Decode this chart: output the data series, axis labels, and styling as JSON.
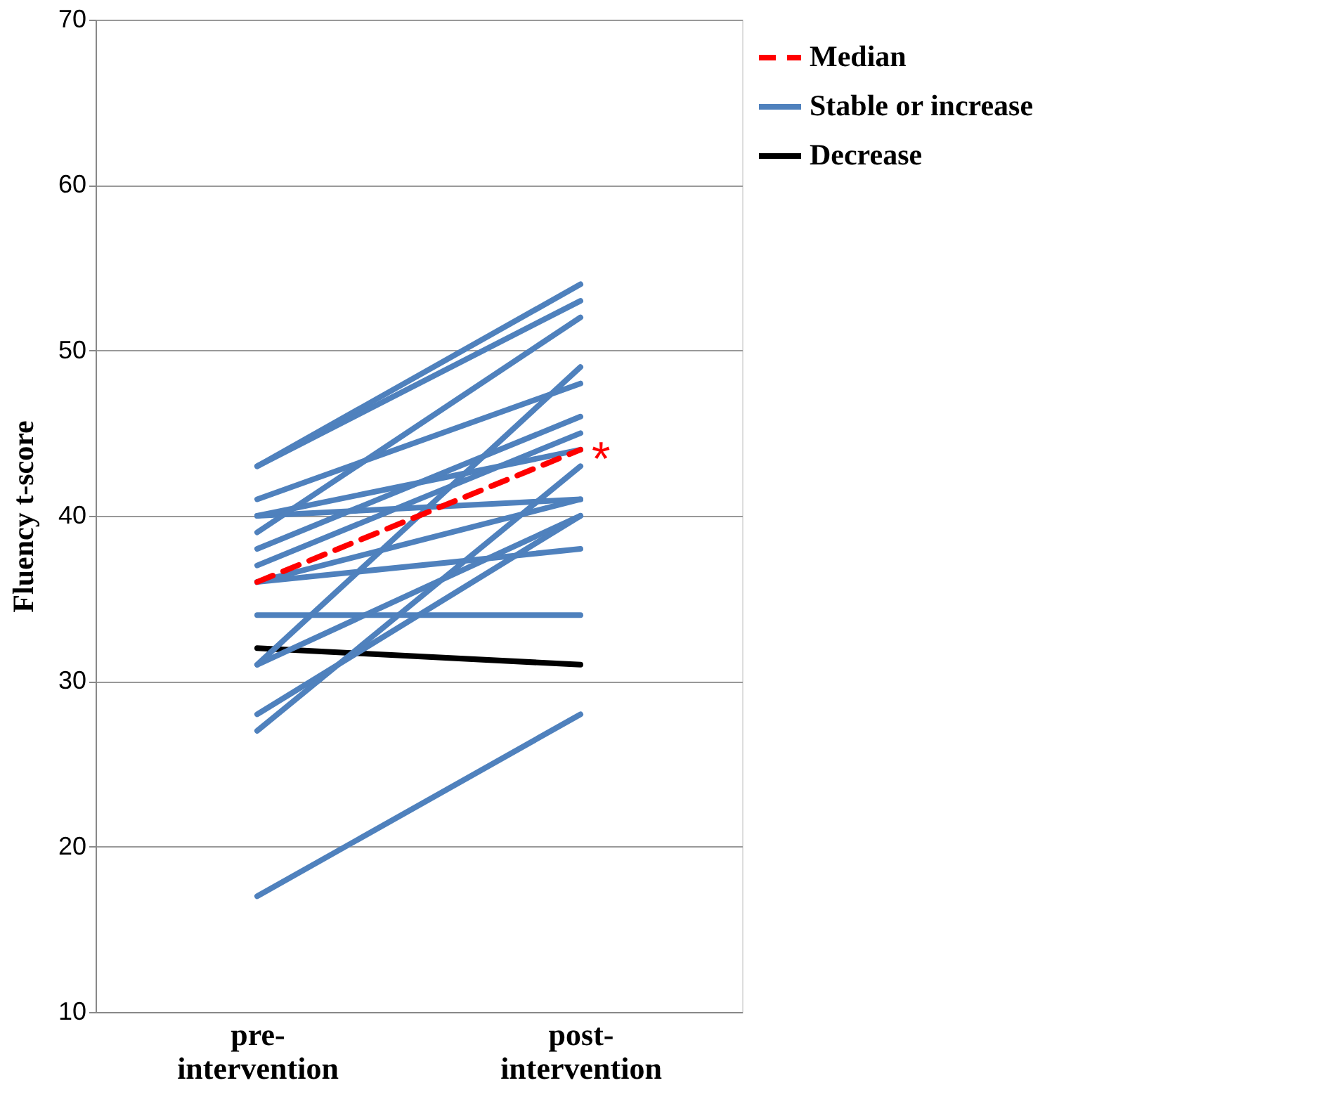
{
  "chart_data": {
    "type": "line",
    "ylabel": "Fluency t-score",
    "categories": [
      "pre-intervention",
      "post-intervention"
    ],
    "ylim": [
      10,
      70
    ],
    "yticks": [
      10,
      20,
      30,
      40,
      50,
      60,
      70
    ],
    "grid": "y",
    "legend": "top right",
    "marker": "none",
    "annotations": [
      {
        "text": "*",
        "x": "post-intervention",
        "y": 44
      }
    ],
    "series": [
      {
        "name": "Median",
        "color": "#ff0000",
        "line_style": "dashed",
        "values": [
          36,
          44
        ]
      },
      {
        "name": "Stable or increase",
        "color": "#4f81bd",
        "values": [
          43,
          54
        ]
      },
      {
        "color": "#4f81bd",
        "values": [
          43,
          53
        ]
      },
      {
        "color": "#4f81bd",
        "values": [
          39,
          52
        ]
      },
      {
        "color": "#4f81bd",
        "values": [
          31,
          49
        ]
      },
      {
        "color": "#4f81bd",
        "values": [
          41,
          48
        ]
      },
      {
        "color": "#4f81bd",
        "values": [
          38,
          46
        ]
      },
      {
        "color": "#4f81bd",
        "values": [
          37,
          45
        ]
      },
      {
        "color": "#4f81bd",
        "values": [
          40,
          44
        ]
      },
      {
        "color": "#4f81bd",
        "values": [
          27,
          43
        ]
      },
      {
        "color": "#4f81bd",
        "values": [
          40,
          41
        ]
      },
      {
        "color": "#4f81bd",
        "values": [
          36,
          41
        ]
      },
      {
        "color": "#4f81bd",
        "values": [
          28,
          40
        ]
      },
      {
        "color": "#4f81bd",
        "values": [
          31,
          40
        ]
      },
      {
        "color": "#4f81bd",
        "values": [
          36,
          38
        ]
      },
      {
        "color": "#4f81bd",
        "values": [
          34,
          34
        ]
      },
      {
        "color": "#4f81bd",
        "values": [
          17,
          28
        ]
      },
      {
        "name": "Decrease",
        "color": "#000000",
        "values": [
          32,
          31
        ]
      }
    ]
  }
}
